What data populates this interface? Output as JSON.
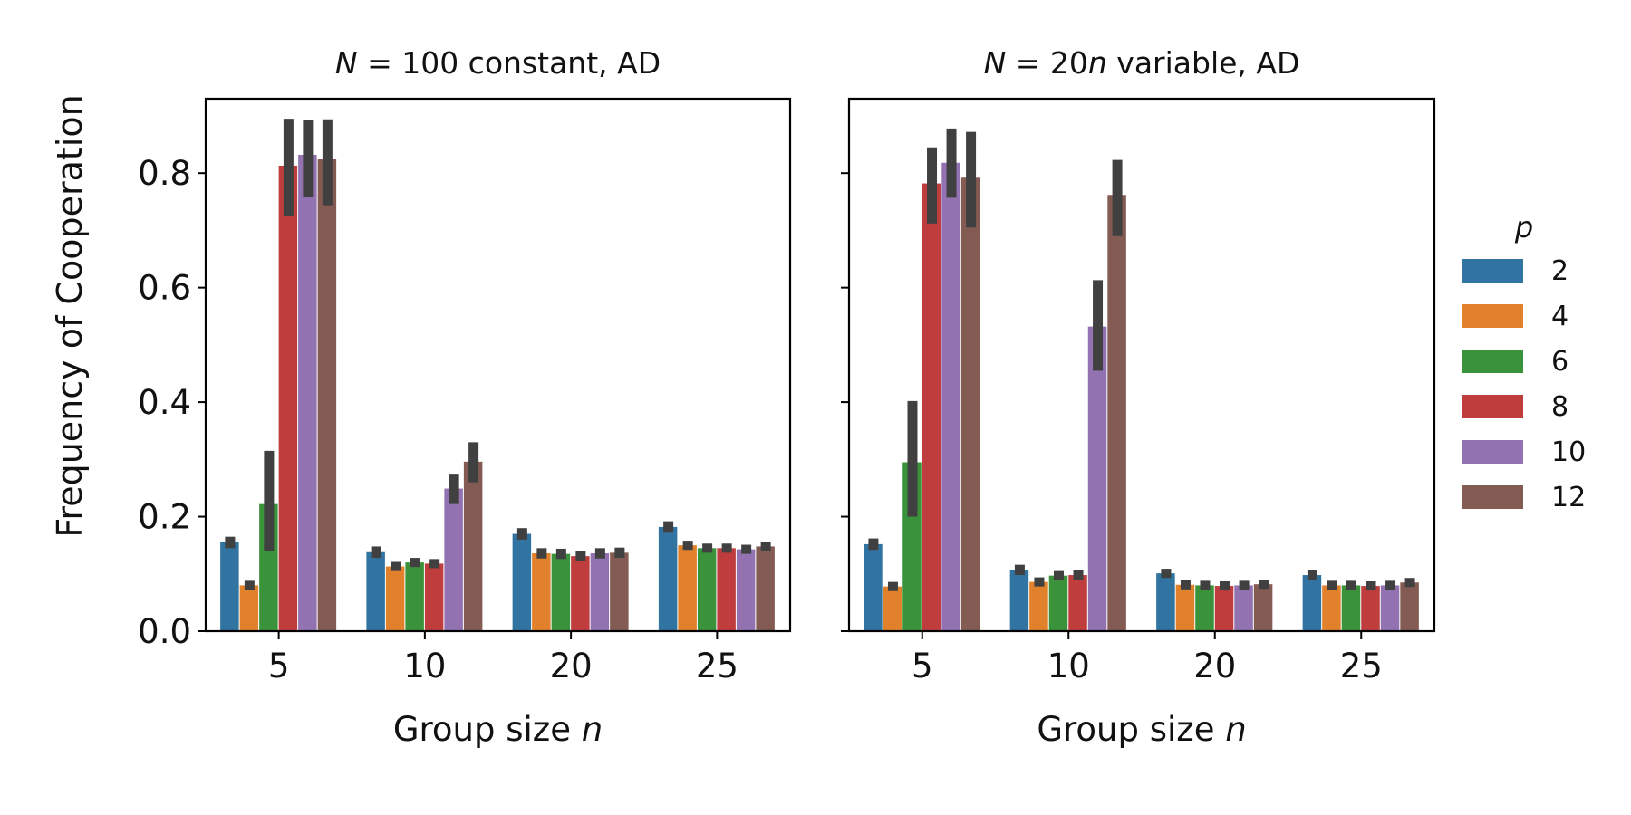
{
  "figure": {
    "ylabel": "Frequency of Cooperation",
    "legend_title": "p",
    "legend_position": "right-outside"
  },
  "chart_data": [
    {
      "type": "bar",
      "title": "N = 100 constant, AD",
      "title_parts": [
        {
          "t": "N",
          "italic": true
        },
        {
          "t": " = 100 constant, AD",
          "italic": false
        }
      ],
      "xlabel": "Group size n",
      "xlabel_parts": [
        {
          "t": "Group size ",
          "italic": false
        },
        {
          "t": "n",
          "italic": true
        }
      ],
      "ylabel": "Frequency of Cooperation",
      "categories": [
        "5",
        "10",
        "20",
        "25"
      ],
      "ylim": [
        0,
        0.93
      ],
      "yticks": [
        0.0,
        0.2,
        0.4,
        0.6,
        0.8
      ],
      "grid": false,
      "series": [
        {
          "name": "2",
          "values": [
            0.155,
            0.138,
            0.17,
            0.182
          ],
          "err_low": [
            0.145,
            0.128,
            0.16,
            0.172
          ],
          "err_high": [
            0.165,
            0.148,
            0.18,
            0.192
          ]
        },
        {
          "name": "4",
          "values": [
            0.08,
            0.113,
            0.136,
            0.15
          ],
          "err_low": [
            0.072,
            0.105,
            0.127,
            0.142
          ],
          "err_high": [
            0.088,
            0.121,
            0.145,
            0.158
          ]
        },
        {
          "name": "6",
          "values": [
            0.222,
            0.12,
            0.135,
            0.145
          ],
          "err_low": [
            0.14,
            0.112,
            0.126,
            0.137
          ],
          "err_high": [
            0.315,
            0.128,
            0.144,
            0.153
          ]
        },
        {
          "name": "8",
          "values": [
            0.813,
            0.118,
            0.131,
            0.145
          ],
          "err_low": [
            0.725,
            0.11,
            0.122,
            0.137
          ],
          "err_high": [
            0.895,
            0.126,
            0.14,
            0.153
          ]
        },
        {
          "name": "10",
          "values": [
            0.832,
            0.249,
            0.136,
            0.143
          ],
          "err_low": [
            0.758,
            0.222,
            0.127,
            0.135
          ],
          "err_high": [
            0.893,
            0.275,
            0.145,
            0.151
          ]
        },
        {
          "name": "12",
          "values": [
            0.824,
            0.296,
            0.137,
            0.148
          ],
          "err_low": [
            0.744,
            0.26,
            0.128,
            0.14
          ],
          "err_high": [
            0.894,
            0.33,
            0.146,
            0.156
          ]
        }
      ]
    },
    {
      "type": "bar",
      "title": "N = 20n variable, AD",
      "title_parts": [
        {
          "t": "N",
          "italic": true
        },
        {
          "t": " = 20",
          "italic": false
        },
        {
          "t": "n",
          "italic": true
        },
        {
          "t": " variable, AD",
          "italic": false
        }
      ],
      "xlabel": "Group size n",
      "xlabel_parts": [
        {
          "t": "Group size ",
          "italic": false
        },
        {
          "t": "n",
          "italic": true
        }
      ],
      "categories": [
        "5",
        "10",
        "20",
        "25"
      ],
      "ylim": [
        0,
        0.93
      ],
      "yticks": [
        0.0,
        0.2,
        0.4,
        0.6,
        0.8
      ],
      "grid": false,
      "series": [
        {
          "name": "2",
          "values": [
            0.152,
            0.107,
            0.101,
            0.098
          ],
          "err_low": [
            0.142,
            0.098,
            0.093,
            0.09
          ],
          "err_high": [
            0.162,
            0.116,
            0.109,
            0.106
          ]
        },
        {
          "name": "4",
          "values": [
            0.078,
            0.086,
            0.081,
            0.08
          ],
          "err_low": [
            0.07,
            0.078,
            0.073,
            0.072
          ],
          "err_high": [
            0.086,
            0.094,
            0.089,
            0.088
          ]
        },
        {
          "name": "6",
          "values": [
            0.295,
            0.097,
            0.08,
            0.08
          ],
          "err_low": [
            0.2,
            0.089,
            0.072,
            0.072
          ],
          "err_high": [
            0.402,
            0.105,
            0.088,
            0.088
          ]
        },
        {
          "name": "8",
          "values": [
            0.782,
            0.098,
            0.079,
            0.079
          ],
          "err_low": [
            0.712,
            0.09,
            0.071,
            0.071
          ],
          "err_high": [
            0.845,
            0.106,
            0.087,
            0.087
          ]
        },
        {
          "name": "10",
          "values": [
            0.818,
            0.532,
            0.08,
            0.08
          ],
          "err_low": [
            0.757,
            0.455,
            0.072,
            0.072
          ],
          "err_high": [
            0.878,
            0.613,
            0.088,
            0.088
          ]
        },
        {
          "name": "12",
          "values": [
            0.792,
            0.762,
            0.082,
            0.085
          ],
          "err_low": [
            0.705,
            0.69,
            0.074,
            0.077
          ],
          "err_high": [
            0.872,
            0.823,
            0.09,
            0.093
          ]
        }
      ]
    }
  ],
  "colors": [
    "#3274a1",
    "#e1812c",
    "#3a923a",
    "#c03d3e",
    "#9372b2",
    "#845b53"
  ],
  "error_bar_color": "#404040"
}
